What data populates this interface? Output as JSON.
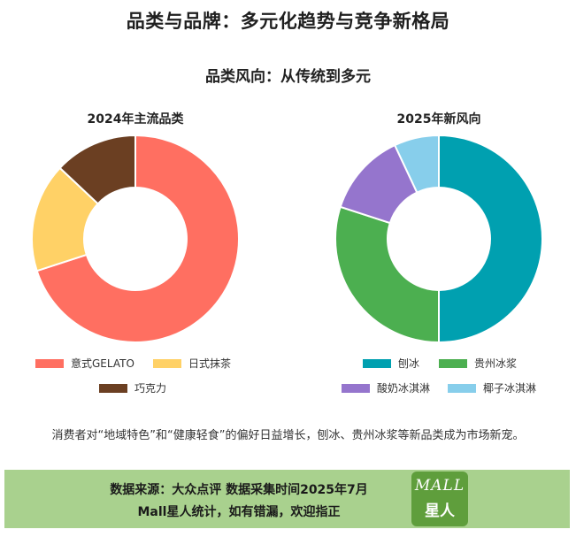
{
  "page": {
    "title": "品类与品牌：多元化趋势与竞争新格局",
    "section_title": "品类风向：从传统到多元",
    "caption": "消费者对“地域特色”和“健康轻食”的偏好日益增长，刨冰、贵州冰浆等新品类成为市场新宠。"
  },
  "chart_data": [
    {
      "type": "pie",
      "donut": true,
      "title": "2024年主流品类",
      "legend_position": "bottom",
      "slices": [
        {
          "label": "意式GELATO",
          "value": 70,
          "color": "#ff6f61"
        },
        {
          "label": "日式抹茶",
          "value": 17,
          "color": "#ffd166"
        },
        {
          "label": "巧克力",
          "value": 13,
          "color": "#6b3f22"
        }
      ]
    },
    {
      "type": "pie",
      "donut": true,
      "title": "2025年新风向",
      "legend_position": "bottom",
      "slices": [
        {
          "label": "刨冰",
          "value": 50,
          "color": "#00a0b0"
        },
        {
          "label": "贵州冰浆",
          "value": 30,
          "color": "#4caf50"
        },
        {
          "label": "酸奶冰淇淋",
          "value": 13,
          "color": "#9575cd"
        },
        {
          "label": "椰子冰淇淋",
          "value": 7,
          "color": "#87ceeb"
        }
      ]
    }
  ],
  "footer": {
    "line1": "数据来源：大众点评  数据采集时间2025年7月",
    "line2": "Mall星人统计，如有错漏，欢迎指正",
    "logo_top": "MALL",
    "logo_bottom": "星人"
  }
}
